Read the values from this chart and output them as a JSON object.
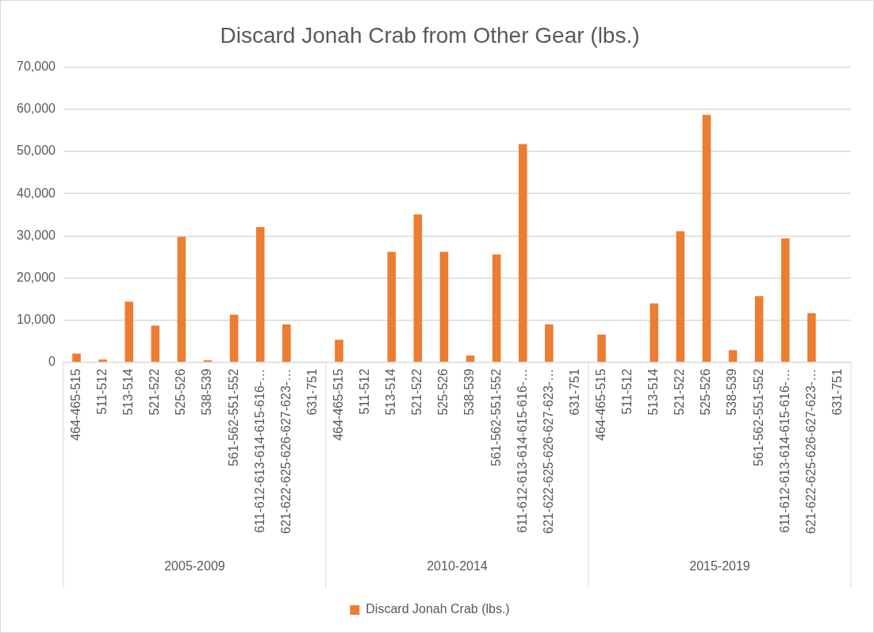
{
  "chart_data": {
    "type": "bar",
    "title": "Discard Jonah Crab from Other Gear (lbs.)",
    "categories": [
      "464-465-515",
      "511-512",
      "513-514",
      "521-522",
      "525-526",
      "538-539",
      "561-562-551-552",
      "611-612-613-614-615-616-…",
      "621-622-625-626-627-623-…",
      "631-751",
      "464-465-515",
      "511-512",
      "513-514",
      "521-522",
      "525-526",
      "538-539",
      "561-562-551-552",
      "611-612-613-614-615-616-…",
      "621-622-625-626-627-623-…",
      "631-751",
      "464-465-515",
      "511-512",
      "513-514",
      "521-522",
      "525-526",
      "538-539",
      "561-562-551-552",
      "611-612-613-614-615-616-…",
      "621-622-625-626-627-623-…",
      "631-751"
    ],
    "series": [
      {
        "name": "Discard Jonah Crab (lbs.)",
        "color": "#ed7d31",
        "values": [
          2100,
          700,
          14400,
          8700,
          29800,
          500,
          11300,
          32100,
          9000,
          0,
          5400,
          0,
          26200,
          35100,
          26200,
          1600,
          25600,
          51800,
          9000,
          0,
          6600,
          0,
          14000,
          31100,
          58700,
          2900,
          15700,
          29400,
          11700,
          0
        ]
      }
    ],
    "annotations": [
      "2005-2009",
      "2010-2014",
      "2015-2019"
    ],
    "ylim": [
      0,
      70000
    ],
    "yticks": [
      {
        "value": 0,
        "label": "0"
      },
      {
        "value": 10000,
        "label": "10,000"
      },
      {
        "value": 20000,
        "label": "20,000"
      },
      {
        "value": 30000,
        "label": "30,000"
      },
      {
        "value": 40000,
        "label": "40,000"
      },
      {
        "value": 50000,
        "label": "50,000"
      },
      {
        "value": 60000,
        "label": "60,000"
      },
      {
        "value": 70000,
        "label": "70,000"
      }
    ],
    "grid": "y",
    "legend": "bottom"
  }
}
